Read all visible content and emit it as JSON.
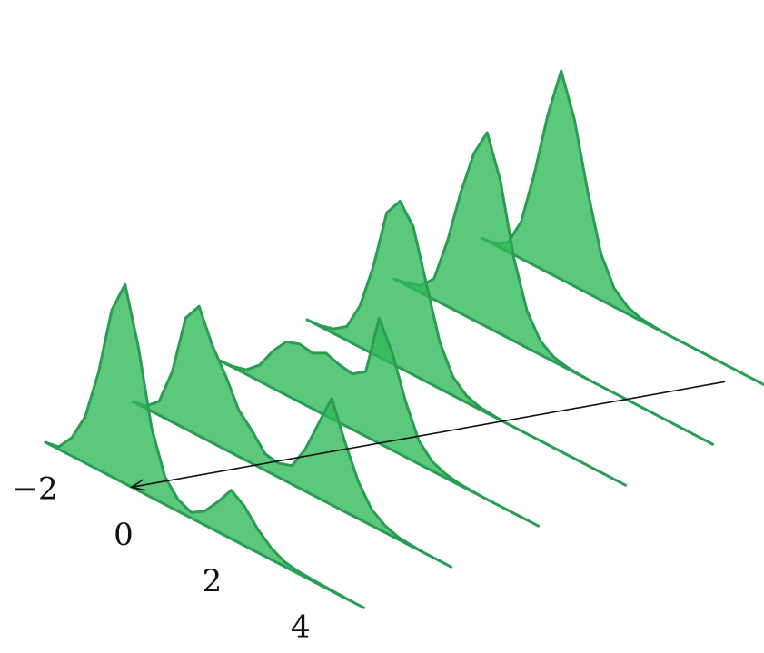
{
  "chart_data": {
    "type": "ridgeline-3d",
    "title": "",
    "xlabel": "",
    "ylabel": "",
    "x_ticks": [
      "−2",
      "0",
      "2",
      "4"
    ],
    "x_tick_values": [
      -2,
      0,
      2,
      4
    ],
    "xlim": [
      -2.3,
      4.9
    ],
    "depth_count": 6,
    "grid": false,
    "legend": "none",
    "colors": {
      "fill": "#2eb856",
      "stroke": "#2a9d55",
      "axis": "#111111"
    },
    "series": [
      {
        "x": [
          -2.3,
          -2.0,
          -1.7,
          -1.4,
          -1.1,
          -0.8,
          -0.5,
          -0.2,
          0.1,
          0.4,
          0.7,
          1.0,
          1.3,
          1.6,
          1.9,
          2.2,
          2.5,
          2.8,
          3.1,
          3.4,
          3.7,
          4.0,
          4.3,
          4.6,
          4.9
        ],
        "y": [
          0.0,
          0.05,
          0.4,
          1.0,
          2.1,
          3.6,
          4.3,
          3.1,
          1.5,
          0.6,
          0.25,
          0.12,
          0.3,
          0.65,
          1.05,
          0.85,
          0.5,
          0.25,
          0.1,
          0.05,
          0.03,
          0.02,
          0.01,
          0.0,
          0.0
        ]
      },
      {
        "x": [
          -2.3,
          -2.0,
          -1.7,
          -1.4,
          -1.1,
          -0.8,
          -0.5,
          -0.2,
          0.1,
          0.4,
          0.7,
          1.0,
          1.3,
          1.6,
          1.9,
          2.2,
          2.5,
          2.8,
          3.1,
          3.4,
          3.7,
          4.0,
          4.3,
          4.6,
          4.9
        ],
        "y": [
          0.0,
          0.05,
          0.3,
          1.1,
          2.4,
          2.8,
          2.1,
          1.6,
          1.0,
          0.7,
          0.35,
          0.3,
          0.4,
          0.9,
          1.6,
          2.3,
          1.5,
          0.8,
          0.35,
          0.15,
          0.05,
          0.02,
          0.0,
          0.0,
          0.0
        ]
      },
      {
        "x": [
          -2.3,
          -2.0,
          -1.7,
          -1.4,
          -1.1,
          -0.8,
          -0.5,
          -0.2,
          0.1,
          0.4,
          0.7,
          1.0,
          1.3,
          1.6,
          1.9,
          2.2,
          2.5,
          2.8,
          3.1,
          3.4,
          3.7,
          4.0,
          4.3,
          4.6,
          4.9
        ],
        "y": [
          0.0,
          0.02,
          0.1,
          0.35,
          0.8,
          1.15,
          1.25,
          1.2,
          1.35,
          1.25,
          1.2,
          1.4,
          2.7,
          2.1,
          1.2,
          0.5,
          0.2,
          0.08,
          0.03,
          0.01,
          0.0,
          0.0,
          0.0,
          0.0,
          0.0
        ]
      },
      {
        "x": [
          -2.3,
          -2.0,
          -1.7,
          -1.4,
          -1.1,
          -0.8,
          -0.5,
          -0.2,
          0.1,
          0.4,
          0.7,
          1.0,
          1.3,
          1.6,
          1.9,
          2.2,
          2.5,
          2.8,
          3.1,
          3.4,
          3.7,
          4.0,
          4.3,
          4.6,
          4.9
        ],
        "y": [
          0.0,
          0.02,
          0.1,
          0.3,
          0.9,
          1.9,
          3.2,
          3.6,
          3.2,
          2.1,
          1.0,
          0.4,
          0.15,
          0.05,
          0.02,
          0.0,
          0.0,
          0.0,
          0.0,
          0.0,
          0.0,
          0.0,
          0.0,
          0.0,
          0.0
        ]
      },
      {
        "x": [
          -2.3,
          -2.0,
          -1.7,
          -1.4,
          -1.1,
          -0.8,
          -0.5,
          -0.2,
          0.1,
          0.4,
          0.7,
          1.0,
          1.3,
          1.6,
          1.9,
          2.2,
          2.5,
          2.8,
          3.1,
          3.4,
          3.7,
          4.0,
          4.3,
          4.6,
          4.9
        ],
        "y": [
          0.0,
          0.05,
          0.15,
          0.45,
          1.4,
          2.6,
          3.6,
          4.2,
          3.3,
          1.8,
          0.8,
          0.3,
          0.1,
          0.03,
          0.01,
          0.0,
          0.0,
          0.0,
          0.0,
          0.0,
          0.0,
          0.0,
          0.0,
          0.0,
          0.0
        ]
      },
      {
        "x": [
          -2.3,
          -2.0,
          -1.7,
          -1.4,
          -1.1,
          -0.8,
          -0.5,
          -0.2,
          0.1,
          0.4,
          0.7,
          1.0,
          1.3,
          1.6,
          1.9,
          2.2,
          2.5,
          2.8,
          3.1,
          3.4,
          3.7,
          4.0,
          4.3,
          4.6,
          4.9
        ],
        "y": [
          0.0,
          0.03,
          0.2,
          0.8,
          2.0,
          3.4,
          4.5,
          3.6,
          2.2,
          1.0,
          0.4,
          0.15,
          0.05,
          0.02,
          0.0,
          0.0,
          0.0,
          0.0,
          0.0,
          0.0,
          0.0,
          0.0,
          0.0,
          0.0,
          0.0
        ]
      }
    ]
  }
}
